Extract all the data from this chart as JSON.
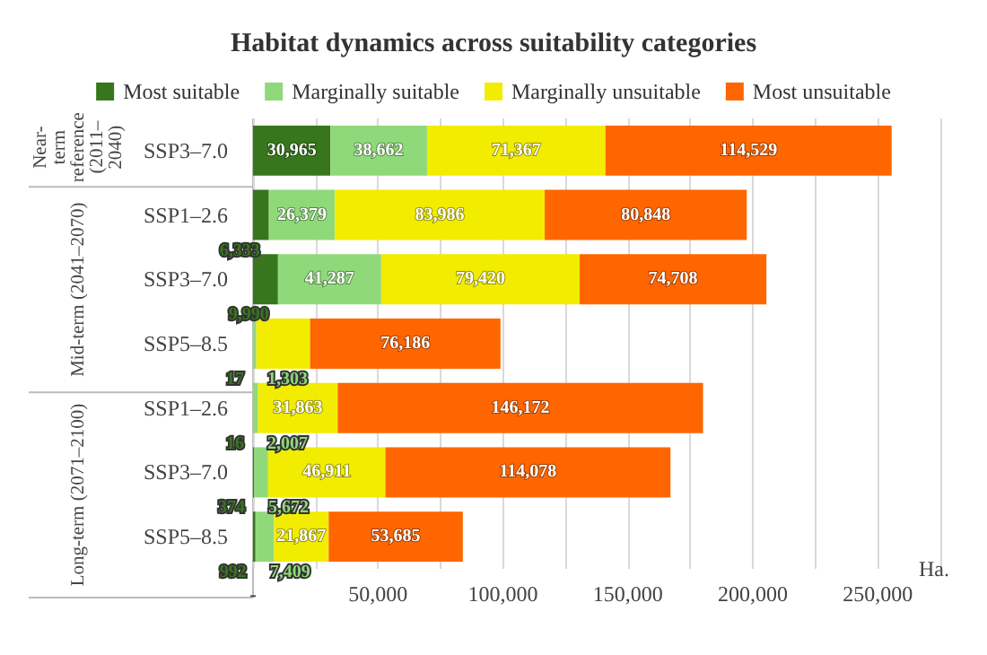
{
  "chart_data": {
    "type": "bar",
    "orientation": "horizontal",
    "stacked": true,
    "title": "Habitat dynamics across suitability categories",
    "xlabel": "Ha.",
    "categories": [
      "SSP3–7.0",
      "SSP1–2.6",
      "SSP3–7.0",
      "SSP5–8.5",
      "SSP1–2.6",
      "SSP3–7.0",
      "SSP5–8.5"
    ],
    "annotations": [
      "Near-term reference (2011–2040)",
      "Mid-term (2041–2070)",
      "Long-term (2071–2100)"
    ],
    "series": [
      {
        "name": "Most suitable",
        "color": "#38761d",
        "values": [
          30965,
          6333,
          9990,
          17,
          16,
          374,
          992
        ],
        "value_labels": [
          "30,965",
          "6,333",
          "9,990",
          "17",
          "16",
          "374",
          "992"
        ]
      },
      {
        "name": "Marginally suitable",
        "color": "#8fd97a",
        "values": [
          38662,
          26379,
          41287,
          1303,
          2007,
          5672,
          7409
        ],
        "value_labels": [
          "38,662",
          "26,379",
          "41,287",
          "1,303",
          "2,007",
          "5,672",
          "7,409"
        ]
      },
      {
        "name": "Marginally unsuitable",
        "color": "#f2ec00",
        "values": [
          71367,
          83986,
          79420,
          21500,
          31863,
          46911,
          21867
        ],
        "value_labels": [
          "71,367",
          "83,986",
          "79,420",
          null,
          "31,863",
          "46,911",
          "21,867"
        ]
      },
      {
        "name": "Most unsuitable",
        "color": "#ff6600",
        "values": [
          114529,
          80848,
          74708,
          76186,
          146172,
          114078,
          53685
        ],
        "value_labels": [
          "114,529",
          "80,848",
          "74,708",
          "76,186",
          "146,172",
          "114,078",
          "53,685"
        ]
      }
    ],
    "xlim": [
      0,
      275000
    ],
    "xticks": [
      {
        "value": 0,
        "label": "-"
      },
      {
        "value": 25000,
        "label": null
      },
      {
        "value": 50000,
        "label": "50,000"
      },
      {
        "value": 75000,
        "label": null
      },
      {
        "value": 100000,
        "label": "100,000"
      },
      {
        "value": 125000,
        "label": null
      },
      {
        "value": 150000,
        "label": "150,000"
      },
      {
        "value": 175000,
        "label": null
      },
      {
        "value": 200000,
        "label": "200,000"
      },
      {
        "value": 225000,
        "label": null
      },
      {
        "value": 250000,
        "label": "250,000"
      },
      {
        "value": 275000,
        "label": null
      }
    ],
    "grid": "x",
    "legend": "top"
  }
}
